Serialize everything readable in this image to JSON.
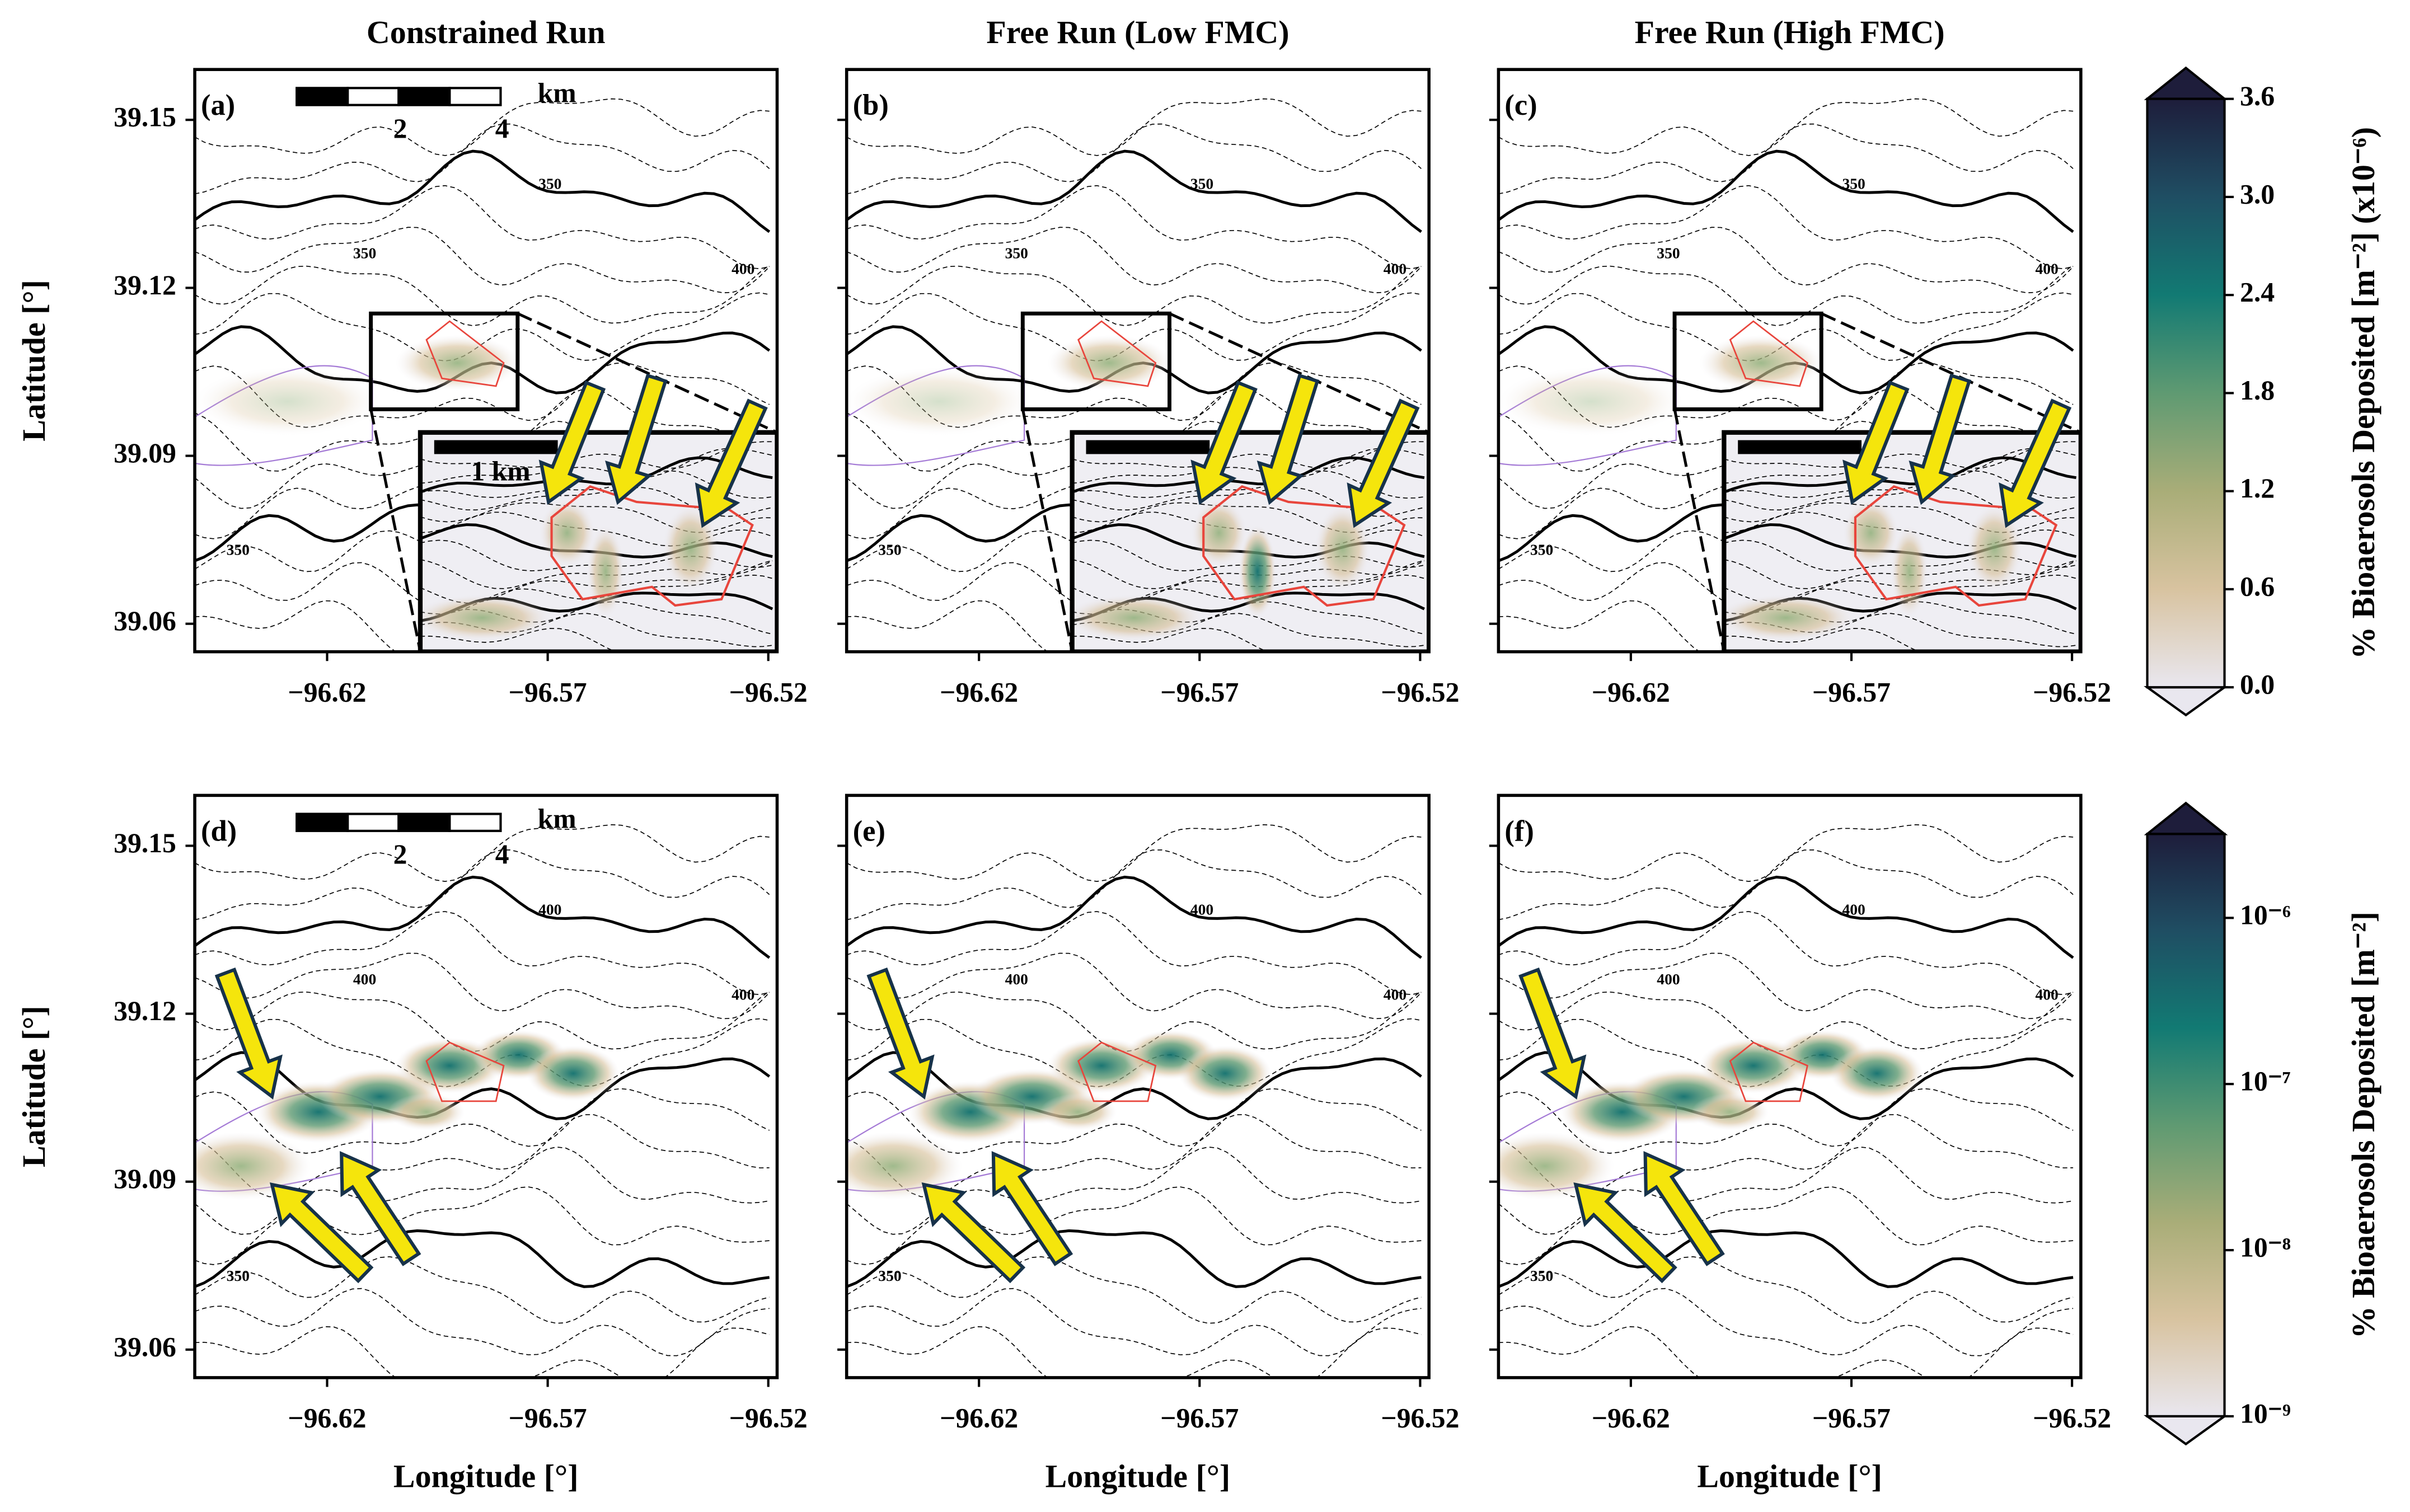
{
  "chart_data": [
    {
      "type": "map",
      "title": "Constrained Run",
      "panel_label": "(a)",
      "ylabel": "Latitude [°]",
      "xlim": [
        -96.65,
        -96.518
      ],
      "ylim": [
        39.055,
        39.159
      ],
      "xticks": [
        {
          "value": -96.62,
          "label": "−96.62"
        },
        {
          "value": -96.57,
          "label": "−96.57"
        },
        {
          "value": -96.52,
          "label": "−96.52"
        }
      ],
      "yticks": [
        39.06,
        39.09,
        39.12,
        39.15
      ],
      "scale_bar_labels": [
        "2",
        "4",
        "km"
      ],
      "inset_scale_label": "1 km",
      "contour_labels": [
        "350",
        "400",
        "350",
        "350"
      ]
    },
    {
      "type": "map",
      "title": "Free Run (Low FMC)",
      "panel_label": "(b)",
      "xlim": [
        -96.65,
        -96.518
      ],
      "ylim": [
        39.055,
        39.159
      ],
      "xticks": [
        {
          "value": -96.62,
          "label": "−96.62"
        },
        {
          "value": -96.57,
          "label": "−96.57"
        },
        {
          "value": -96.52,
          "label": "−96.52"
        }
      ],
      "yticks": [
        39.06,
        39.09,
        39.12,
        39.15
      ],
      "contour_labels": [
        "350",
        "400",
        "350",
        "350"
      ]
    },
    {
      "type": "map",
      "title": "Free Run (High FMC)",
      "panel_label": "(c)",
      "xlim": [
        -96.65,
        -96.518
      ],
      "ylim": [
        39.055,
        39.159
      ],
      "xticks": [
        {
          "value": -96.62,
          "label": "−96.62"
        },
        {
          "value": -96.57,
          "label": "−96.57"
        },
        {
          "value": -96.52,
          "label": "−96.52"
        }
      ],
      "yticks": [
        39.06,
        39.09,
        39.12,
        39.15
      ],
      "contour_labels": [
        "350",
        "400",
        "350",
        "350"
      ]
    },
    {
      "type": "map",
      "panel_label": "(d)",
      "ylabel": "Latitude [°]",
      "xlabel": "Longitude [°]",
      "xlim": [
        -96.65,
        -96.518
      ],
      "ylim": [
        39.055,
        39.159
      ],
      "xticks": [
        {
          "value": -96.62,
          "label": "−96.62"
        },
        {
          "value": -96.57,
          "label": "−96.57"
        },
        {
          "value": -96.52,
          "label": "−96.52"
        }
      ],
      "yticks": [
        39.06,
        39.09,
        39.12,
        39.15
      ],
      "scale_bar_labels": [
        "2",
        "4",
        "km"
      ],
      "contour_labels": [
        "350",
        "400",
        "400",
        "400"
      ]
    },
    {
      "type": "map",
      "panel_label": "(e)",
      "xlabel": "Longitude [°]",
      "xlim": [
        -96.65,
        -96.518
      ],
      "ylim": [
        39.055,
        39.159
      ],
      "xticks": [
        {
          "value": -96.62,
          "label": "−96.62"
        },
        {
          "value": -96.57,
          "label": "−96.57"
        },
        {
          "value": -96.52,
          "label": "−96.52"
        }
      ],
      "yticks": [
        39.06,
        39.09,
        39.12,
        39.15
      ],
      "contour_labels": [
        "350",
        "400",
        "400",
        "400"
      ]
    },
    {
      "type": "map",
      "panel_label": "(f)",
      "xlabel": "Longitude [°]",
      "xlim": [
        -96.65,
        -96.518
      ],
      "ylim": [
        39.055,
        39.159
      ],
      "xticks": [
        {
          "value": -96.62,
          "label": "−96.62"
        },
        {
          "value": -96.57,
          "label": "−96.57"
        },
        {
          "value": -96.52,
          "label": "−96.52"
        }
      ],
      "yticks": [
        39.06,
        39.09,
        39.12,
        39.15
      ],
      "contour_labels": [
        "350",
        "400",
        "400",
        "400"
      ]
    },
    {
      "type": "colorbar",
      "label": "% Bioaerosols Deposited [m⁻²] (x10⁻⁶)",
      "ylim": [
        0,
        3.6
      ],
      "yticks": [
        {
          "value": 0,
          "label": "0.0"
        },
        0.6,
        1.2,
        1.8,
        2.4,
        {
          "value": 3,
          "label": "3.0"
        },
        3.6
      ],
      "colors": [
        "#e9e7ef",
        "#d8c3a0",
        "#a9ad78",
        "#5f9a72",
        "#127a73",
        "#1f4e63",
        "#1e1d3b"
      ]
    },
    {
      "type": "colorbar",
      "label": "% Bioaerosols Deposited [m⁻²]",
      "log": true,
      "ylim": [
        1e-09,
        3.2e-06
      ],
      "yticks": [
        {
          "value": 1e-09,
          "label": "10⁻⁹"
        },
        {
          "value": 1e-08,
          "label": "10⁻⁸"
        },
        {
          "value": 1e-07,
          "label": "10⁻⁷"
        },
        {
          "value": 1e-06,
          "label": "10⁻⁶"
        }
      ],
      "colors": [
        "#e9e7ef",
        "#d8c3a0",
        "#a9ad78",
        "#5f9a72",
        "#127a73",
        "#1f4e63",
        "#1e1d3b"
      ]
    }
  ]
}
